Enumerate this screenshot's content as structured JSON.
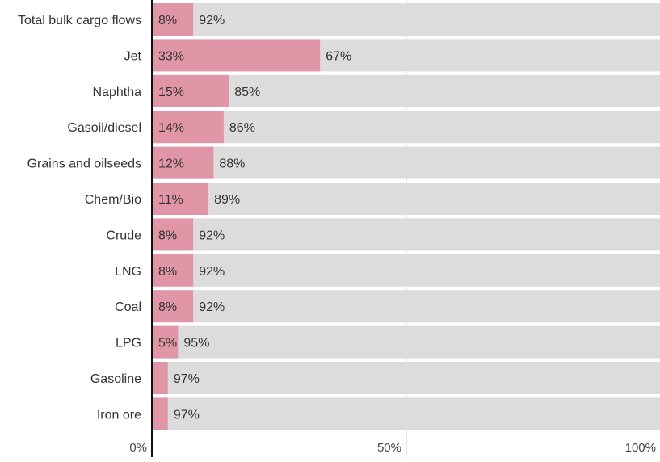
{
  "chart_data": {
    "type": "bar",
    "orientation": "horizontal",
    "stacked": true,
    "categories": [
      "Total bulk cargo flows",
      "Jet",
      "Naphtha",
      "Gasoil/diesel",
      "Grains and oilseeds",
      "Chem/Bio",
      "Crude",
      "LNG",
      "Coal",
      "LPG",
      "Gasoline",
      "Iron ore"
    ],
    "series": [
      {
        "values": [
          8,
          33,
          15,
          14,
          12,
          11,
          8,
          8,
          8,
          5,
          3,
          3
        ],
        "labels": [
          "8%",
          "33%",
          "15%",
          "14%",
          "12%",
          "11%",
          "8%",
          "8%",
          "8%",
          "5%",
          "",
          ""
        ],
        "color": "#e096a6"
      },
      {
        "values": [
          92,
          67,
          85,
          86,
          88,
          89,
          92,
          92,
          92,
          95,
          97,
          97
        ],
        "labels": [
          "92%",
          "67%",
          "85%",
          "86%",
          "88%",
          "89%",
          "92%",
          "92%",
          "92%",
          "95%",
          "97%",
          "97%"
        ],
        "color": "#dcdcdc"
      }
    ],
    "xlim": [
      0,
      100
    ],
    "x_ticks": [
      0,
      50,
      100
    ],
    "x_tick_labels": [
      "0%",
      "50%",
      "100%"
    ],
    "grid": true,
    "legend": "none",
    "title": "",
    "xlabel": "",
    "ylabel": ""
  }
}
